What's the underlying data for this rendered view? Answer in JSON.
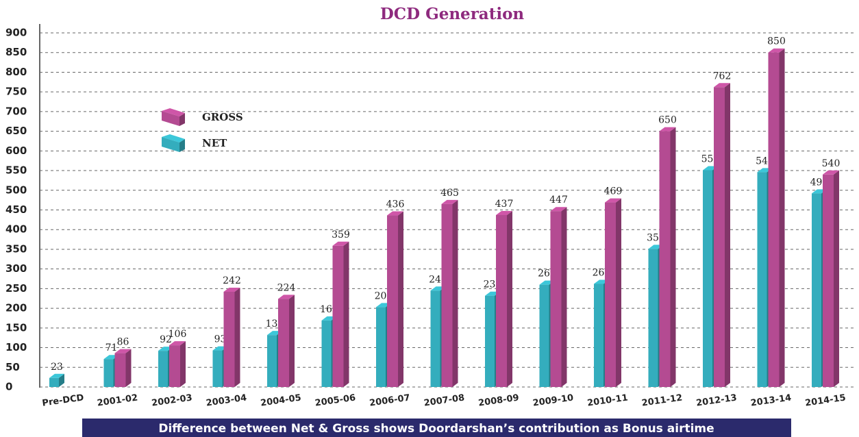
{
  "chart_data": {
    "type": "bar3d",
    "title": "DCD Generation",
    "categories": [
      "Pre-DCD",
      "2001-02",
      "2002-03",
      "2003-04",
      "2004-05",
      "2005-06",
      "2006-07",
      "2007-08",
      "2008-09",
      "2009-10",
      "2010-11",
      "2011-12",
      "2012-13",
      "2013-14",
      "2014-15"
    ],
    "series": [
      {
        "name": "NET",
        "color": "#34adbd",
        "values": [
          23,
          71,
          92,
          93,
          132,
          169,
          203,
          245,
          232,
          260,
          262,
          351,
          551,
          546,
          492
        ]
      },
      {
        "name": "GROSS",
        "color": "#b44b92",
        "values": [
          null,
          86,
          106,
          242,
          224,
          359,
          436,
          465,
          437,
          447,
          469,
          650,
          762,
          850,
          540
        ]
      }
    ],
    "ylim": [
      0,
      900
    ],
    "yticks": [
      0,
      50,
      100,
      150,
      200,
      250,
      300,
      350,
      400,
      450,
      500,
      550,
      600,
      650,
      700,
      750,
      800,
      850,
      900
    ],
    "grid": true,
    "annotations": [
      "Difference between Net & Gross shows Doordarshan’s contribution as Bonus airtime"
    ]
  }
}
